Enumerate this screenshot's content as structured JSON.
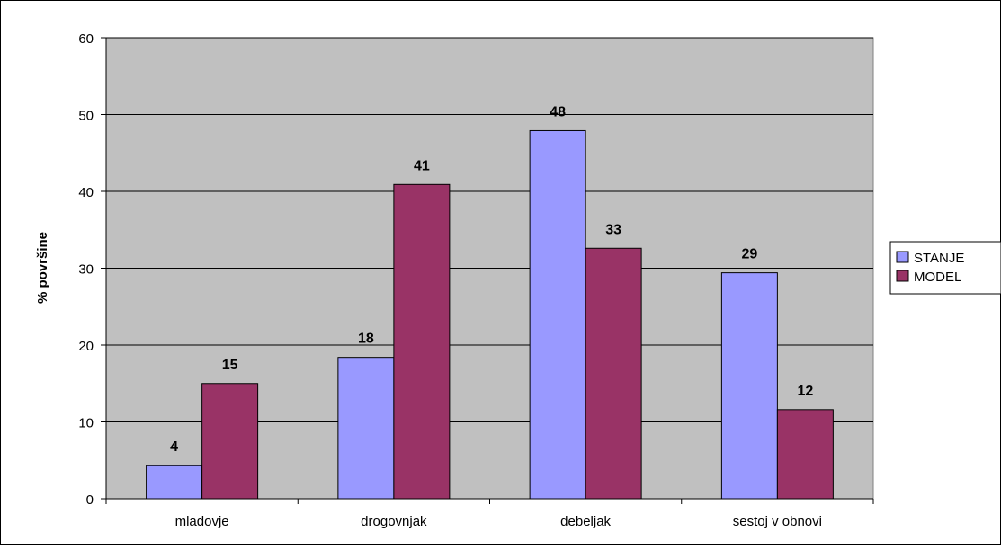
{
  "chart_data": {
    "type": "bar",
    "title": "",
    "xlabel": "",
    "ylabel": "% površine",
    "categories": [
      "mladovje",
      "drogovnjak",
      "debeljak",
      "sestoj v obnovi"
    ],
    "series": [
      {
        "name": "STANJE",
        "values": [
          4.3,
          18.4,
          47.9,
          29.4
        ],
        "labels": [
          "4",
          "18",
          "48",
          "29"
        ],
        "color": "#9999ff"
      },
      {
        "name": "MODEL",
        "values": [
          15.0,
          40.9,
          32.6,
          11.6
        ],
        "labels": [
          "15",
          "41",
          "33",
          "12"
        ],
        "color": "#993366"
      }
    ],
    "ylim": [
      0,
      60
    ],
    "yticks": [
      0,
      10,
      20,
      30,
      40,
      50,
      60
    ],
    "grid": true,
    "legend_position": "right",
    "plot_background": "#c0c0c0"
  }
}
